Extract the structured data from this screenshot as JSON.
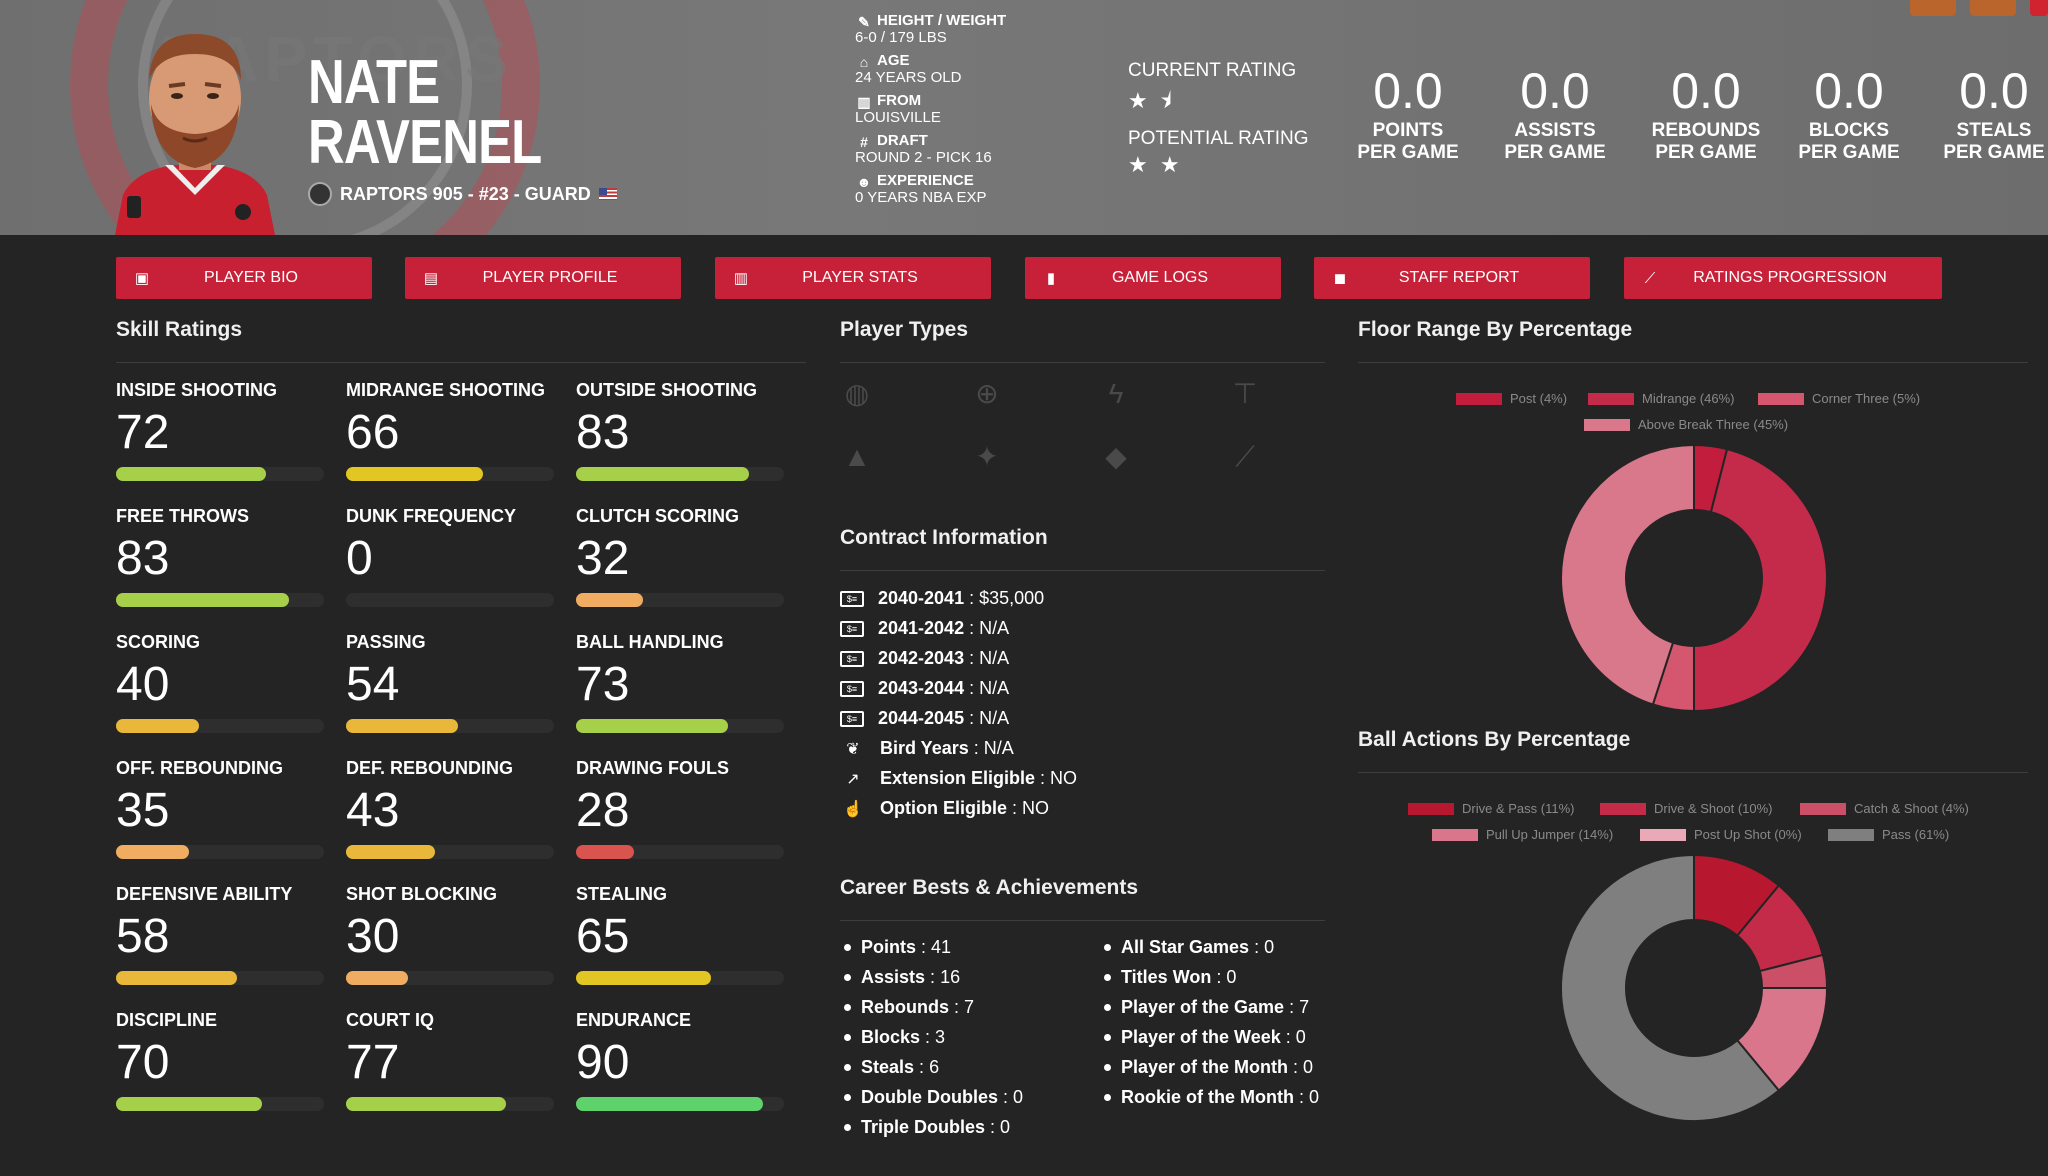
{
  "player": {
    "first_name": "NATE",
    "last_name": "RAVENEL",
    "team_line": "RAPTORS 905 - #23 - GUARD",
    "watermark": "RAPTORS"
  },
  "bio": {
    "height_weight_label": "HEIGHT / WEIGHT",
    "height_weight": "6-0 / 179 LBS",
    "age_label": "AGE",
    "age": "24 YEARS OLD",
    "from_label": "FROM",
    "from": "LOUISVILLE",
    "draft_label": "DRAFT",
    "draft": "ROUND 2 - PICK 16",
    "experience_label": "EXPERIENCE",
    "experience": "0 YEARS NBA EXP"
  },
  "ratings": {
    "current_label": "CURRENT RATING",
    "current_stars": "★ ⯨",
    "potential_label": "POTENTIAL RATING",
    "potential_stars": "★ ★"
  },
  "stats": [
    {
      "value": "0.0",
      "line1": "POINTS",
      "line2": "PER GAME"
    },
    {
      "value": "0.0",
      "line1": "ASSISTS",
      "line2": "PER GAME"
    },
    {
      "value": "0.0",
      "line1": "REBOUNDS",
      "line2": "PER GAME"
    },
    {
      "value": "0.0",
      "line1": "BLOCKS",
      "line2": "PER GAME"
    },
    {
      "value": "0.0",
      "line1": "STEALS",
      "line2": "PER GAME"
    }
  ],
  "nav": [
    {
      "label": "PLAYER BIO",
      "icon": "id-card-icon"
    },
    {
      "label": "PLAYER PROFILE",
      "icon": "profile-icon"
    },
    {
      "label": "PLAYER STATS",
      "icon": "bar-chart-icon"
    },
    {
      "label": "GAME LOGS",
      "icon": "clipboard-icon"
    },
    {
      "label": "STAFF REPORT",
      "icon": "comment-icon"
    },
    {
      "label": "RATINGS PROGRESSION",
      "icon": "line-chart-icon"
    }
  ],
  "sections": {
    "skill_ratings": "Skill Ratings",
    "player_types": "Player Types",
    "floor_range": "Floor Range By Percentage",
    "contract": "Contract Information",
    "ball_actions": "Ball Actions By Percentage",
    "career": "Career Bests & Achievements"
  },
  "skills": [
    {
      "name": "INSIDE SHOOTING",
      "value": 72,
      "color": "#a7d04a"
    },
    {
      "name": "MIDRANGE SHOOTING",
      "value": 66,
      "color": "#e2c623"
    },
    {
      "name": "OUTSIDE SHOOTING",
      "value": 83,
      "color": "#a7d04a"
    },
    {
      "name": "FREE THROWS",
      "value": 83,
      "color": "#a7d04a"
    },
    {
      "name": "DUNK FREQUENCY",
      "value": 0,
      "color": "#e2c623"
    },
    {
      "name": "CLUTCH SCORING",
      "value": 32,
      "color": "#f0ad62"
    },
    {
      "name": "SCORING",
      "value": 40,
      "color": "#e9b83a"
    },
    {
      "name": "PASSING",
      "value": 54,
      "color": "#e9b83a"
    },
    {
      "name": "BALL HANDLING",
      "value": 73,
      "color": "#a7d04a"
    },
    {
      "name": "OFF. REBOUNDING",
      "value": 35,
      "color": "#f0ad62"
    },
    {
      "name": "DEF. REBOUNDING",
      "value": 43,
      "color": "#e9b83a"
    },
    {
      "name": "DRAWING FOULS",
      "value": 28,
      "color": "#d9534f"
    },
    {
      "name": "DEFENSIVE ABILITY",
      "value": 58,
      "color": "#e9b83a"
    },
    {
      "name": "SHOT BLOCKING",
      "value": 30,
      "color": "#f0ad62"
    },
    {
      "name": "STEALING",
      "value": 65,
      "color": "#e2c623"
    },
    {
      "name": "DISCIPLINE",
      "value": 70,
      "color": "#a7d04a"
    },
    {
      "name": "COURT IQ",
      "value": 77,
      "color": "#a7d04a"
    },
    {
      "name": "ENDURANCE",
      "value": 90,
      "color": "#5fd36b"
    }
  ],
  "player_type_icons": [
    "basketball-icon",
    "crosshair-icon",
    "lightning-icon",
    "paint-roller-icon",
    "cone-icon",
    "magic-wand-icon",
    "shield-icon",
    "broom-icon"
  ],
  "contract": [
    {
      "label": "2040-2041",
      "value": "$35,000",
      "icon": "money-icon"
    },
    {
      "label": "2041-2042",
      "value": "N/A",
      "icon": "money-icon"
    },
    {
      "label": "2042-2043",
      "value": "N/A",
      "icon": "money-icon"
    },
    {
      "label": "2043-2044",
      "value": "N/A",
      "icon": "money-icon"
    },
    {
      "label": "2044-2045",
      "value": "N/A",
      "icon": "money-icon"
    },
    {
      "label": "Bird Years",
      "value": "N/A",
      "icon": "feather-icon"
    },
    {
      "label": "Extension Eligible",
      "value": "NO",
      "icon": "external-link-icon"
    },
    {
      "label": "Option Eligible",
      "value": "NO",
      "icon": "thumbs-up-icon"
    }
  ],
  "career_left": [
    {
      "label": "Points",
      "value": "41"
    },
    {
      "label": "Assists",
      "value": "16"
    },
    {
      "label": "Rebounds",
      "value": "7"
    },
    {
      "label": "Blocks",
      "value": "3"
    },
    {
      "label": "Steals",
      "value": "6"
    },
    {
      "label": "Double Doubles",
      "value": "0"
    },
    {
      "label": "Triple Doubles",
      "value": "0"
    }
  ],
  "career_right": [
    {
      "label": "All Star Games",
      "value": "0"
    },
    {
      "label": "Titles Won",
      "value": "0"
    },
    {
      "label": "Player of the Game",
      "value": "7"
    },
    {
      "label": "Player of the Week",
      "value": "0"
    },
    {
      "label": "Player of the Month",
      "value": "0"
    },
    {
      "label": "Rookie of the Month",
      "value": "0"
    }
  ],
  "chart_data": [
    {
      "type": "pie",
      "title": "Floor Range By Percentage",
      "categories": [
        "Post (4%)",
        "Midrange (46%)",
        "Corner Three (5%)",
        "Above Break Three (45%)"
      ],
      "values": [
        4,
        46,
        5,
        45
      ],
      "colors": [
        "#c21d3c",
        "#c42b4b",
        "#d5566f",
        "#d9778b"
      ],
      "donut": true,
      "legend": "top"
    },
    {
      "type": "pie",
      "title": "Ball Actions By Percentage",
      "categories": [
        "Drive & Pass (11%)",
        "Drive & Shoot (10%)",
        "Catch & Shoot (4%)",
        "Pull Up Jumper (14%)",
        "Post Up Shot (0%)",
        "Pass (61%)"
      ],
      "values": [
        11,
        10,
        4,
        14,
        0,
        61
      ],
      "colors": [
        "#b8182f",
        "#c42b48",
        "#cc4f68",
        "#d9768b",
        "#e9a9b7",
        "#7f7f7f"
      ],
      "donut": true,
      "legend": "top"
    }
  ]
}
